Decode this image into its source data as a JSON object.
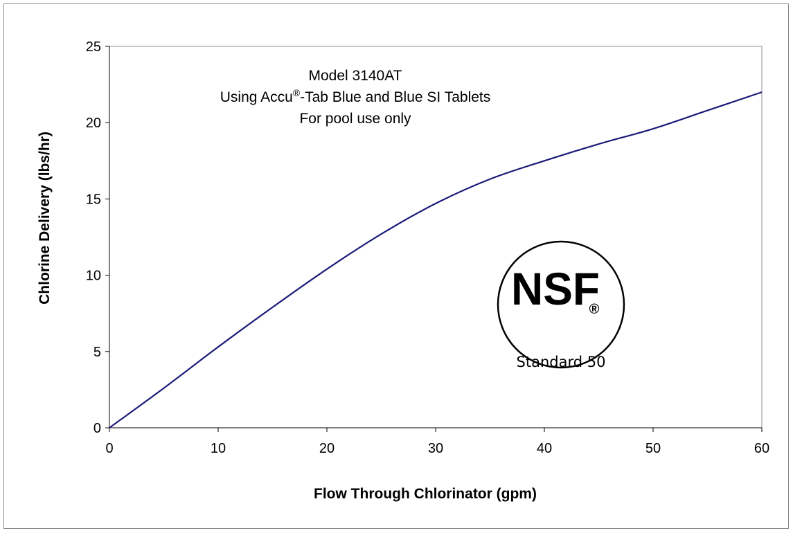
{
  "chart_data": {
    "type": "line",
    "title": "",
    "annotation_lines": [
      "Model 3140AT",
      "Using Accu",
      "®",
      "-Tab Blue and Blue SI Tablets",
      "For pool use only"
    ],
    "xlabel": "Flow Through Chlorinator (gpm)",
    "ylabel": "Chlorine Delivery (lbs/hr)",
    "xlim": [
      0,
      60
    ],
    "ylim": [
      0,
      25
    ],
    "x_ticks": [
      "0",
      "10",
      "20",
      "30",
      "40",
      "50",
      "60"
    ],
    "y_ticks": [
      "0",
      "5",
      "10",
      "15",
      "20",
      "25"
    ],
    "grid": false,
    "legend": "none",
    "series": [
      {
        "color": "#1a1a7a",
        "x": [
          0,
          5,
          10,
          15,
          20,
          25,
          30,
          35,
          40,
          45,
          50,
          55,
          60
        ],
        "y": [
          0,
          2.6,
          5.3,
          7.9,
          10.4,
          12.7,
          14.7,
          16.3,
          17.5,
          18.6,
          19.6,
          20.8,
          22.0
        ]
      }
    ]
  },
  "logo": {
    "name": "NSF",
    "mark": "NSF",
    "registered": "®",
    "caption": "Standard 50"
  }
}
